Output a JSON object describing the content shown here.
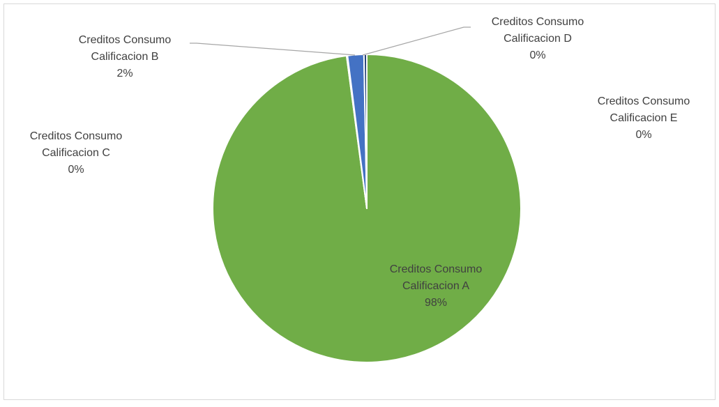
{
  "chart_data": {
    "type": "pie",
    "title": "",
    "colors": {
      "border": "#d9d9d9",
      "leader": "#a6a6a6",
      "text": "#404040",
      "slice_separator": "#ffffff"
    },
    "slices": [
      {
        "label_lines": [
          "Creditos Consumo",
          "Calificacion A"
        ],
        "percent_label": "98%",
        "value": 97.9,
        "color": "#70ad47"
      },
      {
        "label_lines": [
          "Creditos Consumo",
          "Calificacion B"
        ],
        "percent_label": "2%",
        "value": 1.7,
        "color": "#4472c4"
      },
      {
        "label_lines": [
          "Creditos Consumo",
          "Calificacion C"
        ],
        "percent_label": "0%",
        "value": 0.05,
        "color": "#a5a5a5"
      },
      {
        "label_lines": [
          "Creditos Consumo",
          "Calificacion D"
        ],
        "percent_label": "0%",
        "value": 0.3,
        "color": "#264478"
      },
      {
        "label_lines": [
          "Creditos Consumo",
          "Calificacion E"
        ],
        "percent_label": "0%",
        "value": 0.05,
        "color": "#9e480e"
      }
    ]
  }
}
